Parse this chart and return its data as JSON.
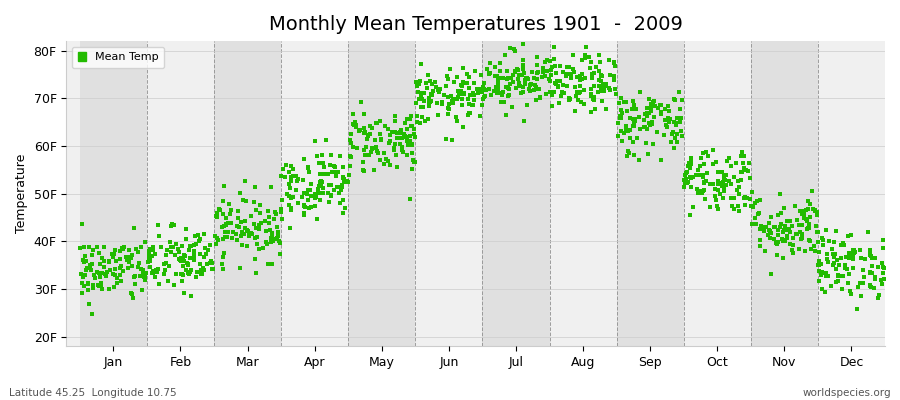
{
  "title": "Monthly Mean Temperatures 1901  -  2009",
  "ylabel": "Temperature",
  "xlabel_months": [
    "Jan",
    "Feb",
    "Mar",
    "Apr",
    "May",
    "Jun",
    "Jul",
    "Aug",
    "Sep",
    "Oct",
    "Nov",
    "Dec"
  ],
  "ytick_labels": [
    "20F",
    "30F",
    "40F",
    "50F",
    "60F",
    "70F",
    "80F"
  ],
  "ytick_values": [
    20,
    30,
    40,
    50,
    60,
    70,
    80
  ],
  "ylim": [
    18,
    82
  ],
  "dot_color": "#22bb00",
  "dot_size": 7,
  "background_color": "#ffffff",
  "plot_bg_color": "#f0f0f0",
  "alt_band_color": "#e0e0e0",
  "title_fontsize": 14,
  "axis_fontsize": 9,
  "legend_label": "Mean Temp",
  "footer_left": "Latitude 45.25  Longitude 10.75",
  "footer_right": "worldspecies.org",
  "monthly_means_F": [
    34,
    36,
    43,
    52,
    61,
    70,
    74,
    73,
    65,
    53,
    43,
    35
  ],
  "monthly_stds_F": [
    3.5,
    3.5,
    3.5,
    3.5,
    3.5,
    3.0,
    3.0,
    3.0,
    3.5,
    3.5,
    3.5,
    3.5
  ],
  "n_years": 109,
  "seed": 42
}
